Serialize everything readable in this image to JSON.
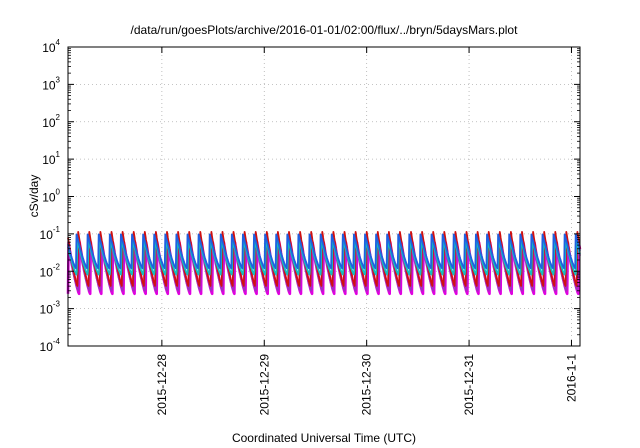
{
  "chart_data": {
    "type": "line",
    "title": "/data/run/goesPlots/archive/2016-01-01/02:00/flux/../bryn/5daysMars.plot",
    "xlabel": "Coordinated Universal Time (UTC)",
    "ylabel": "cSv/day",
    "yscale": "log",
    "ylim": [
      0.0001,
      10000
    ],
    "y_ticks": [
      {
        "base": "10",
        "exp": "-4"
      },
      {
        "base": "10",
        "exp": "-3"
      },
      {
        "base": "10",
        "exp": "-2"
      },
      {
        "base": "10",
        "exp": "-1"
      },
      {
        "base": "10",
        "exp": "0"
      },
      {
        "base": "10",
        "exp": "1"
      },
      {
        "base": "10",
        "exp": "2"
      },
      {
        "base": "10",
        "exp": "3"
      },
      {
        "base": "10",
        "exp": "4"
      }
    ],
    "xlim": [
      "2015-12-27 02:00",
      "2016-01-01 02:00"
    ],
    "x_ticks": [
      "2015-12-28",
      "2015-12-29",
      "2015-12-30",
      "2015-12-31",
      "2016-1-1"
    ],
    "x_tick_dates": [
      "2015-12-28 00:00",
      "2015-12-29 00:00",
      "2015-12-30 00:00",
      "2015-12-31 00:00",
      "2016-01-01 00:00"
    ],
    "grid": true,
    "pulse_period_hours": 2.6,
    "series": [
      {
        "color": "#d01010",
        "peak": 0.12,
        "trough": 0.004
      },
      {
        "color": "#e000e0",
        "peak": 0.06,
        "trough": 0.0025
      },
      {
        "color": "#a030c0",
        "peak": 0.05,
        "trough": 0.003
      },
      {
        "color": "#10c0c0",
        "peak": 0.07,
        "trough": 0.008
      },
      {
        "color": "#2060e0",
        "peak": 0.1,
        "trough": 0.012
      }
    ]
  }
}
